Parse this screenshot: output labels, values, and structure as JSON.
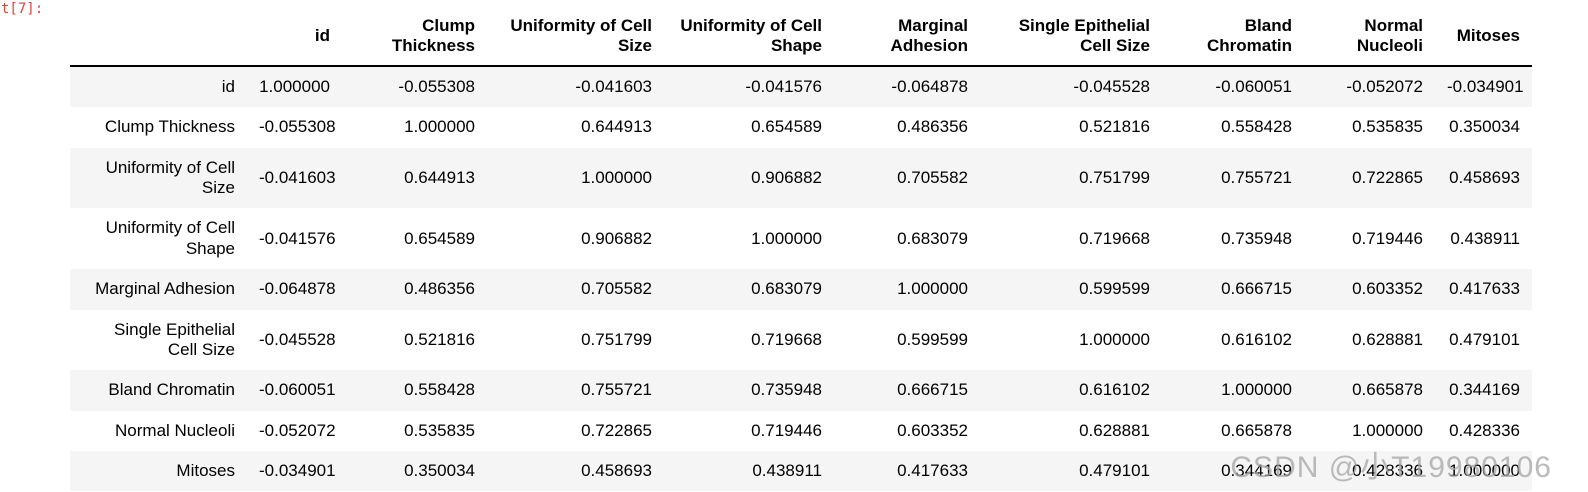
{
  "output_prompt": "t[7]:",
  "watermark": {
    "text": "CSDN @小T19980106"
  },
  "colors": {
    "prompt_red": "#d4483b",
    "row_stripe": "#f5f5f5",
    "header_border": "#000000",
    "watermark_gray": "#a4a4a4"
  },
  "table": {
    "index_header": "",
    "columns": [
      "id",
      "Clump\nThickness",
      "Uniformity of Cell\nSize",
      "Uniformity of Cell\nShape",
      "Marginal\nAdhesion",
      "Single Epithelial\nCell Size",
      "Bland\nChromatin",
      "Normal\nNucleoli",
      "Mitoses"
    ],
    "rows": [
      {
        "label": "id",
        "values": [
          "1.000000",
          "-0.055308",
          "-0.041603",
          "-0.041576",
          "-0.064878",
          "-0.045528",
          "-0.060051",
          "-0.052072",
          "-0.034901"
        ]
      },
      {
        "label": "Clump Thickness",
        "values": [
          "-0.055308",
          "1.000000",
          "0.644913",
          "0.654589",
          "0.486356",
          "0.521816",
          "0.558428",
          "0.535835",
          "0.350034"
        ]
      },
      {
        "label": "Uniformity of Cell\nSize",
        "values": [
          "-0.041603",
          "0.644913",
          "1.000000",
          "0.906882",
          "0.705582",
          "0.751799",
          "0.755721",
          "0.722865",
          "0.458693"
        ]
      },
      {
        "label": "Uniformity of Cell\nShape",
        "values": [
          "-0.041576",
          "0.654589",
          "0.906882",
          "1.000000",
          "0.683079",
          "0.719668",
          "0.735948",
          "0.719446",
          "0.438911"
        ]
      },
      {
        "label": "Marginal Adhesion",
        "values": [
          "-0.064878",
          "0.486356",
          "0.705582",
          "0.683079",
          "1.000000",
          "0.599599",
          "0.666715",
          "0.603352",
          "0.417633"
        ]
      },
      {
        "label": "Single Epithelial\nCell Size",
        "values": [
          "-0.045528",
          "0.521816",
          "0.751799",
          "0.719668",
          "0.599599",
          "1.000000",
          "0.616102",
          "0.628881",
          "0.479101"
        ]
      },
      {
        "label": "Bland Chromatin",
        "values": [
          "-0.060051",
          "0.558428",
          "0.755721",
          "0.735948",
          "0.666715",
          "0.616102",
          "1.000000",
          "0.665878",
          "0.344169"
        ]
      },
      {
        "label": "Normal Nucleoli",
        "values": [
          "-0.052072",
          "0.535835",
          "0.722865",
          "0.719446",
          "0.603352",
          "0.628881",
          "0.665878",
          "1.000000",
          "0.428336"
        ]
      },
      {
        "label": "Mitoses",
        "values": [
          "-0.034901",
          "0.350034",
          "0.458693",
          "0.438911",
          "0.417633",
          "0.479101",
          "0.344169",
          "0.428336",
          "1.000000"
        ]
      }
    ]
  }
}
